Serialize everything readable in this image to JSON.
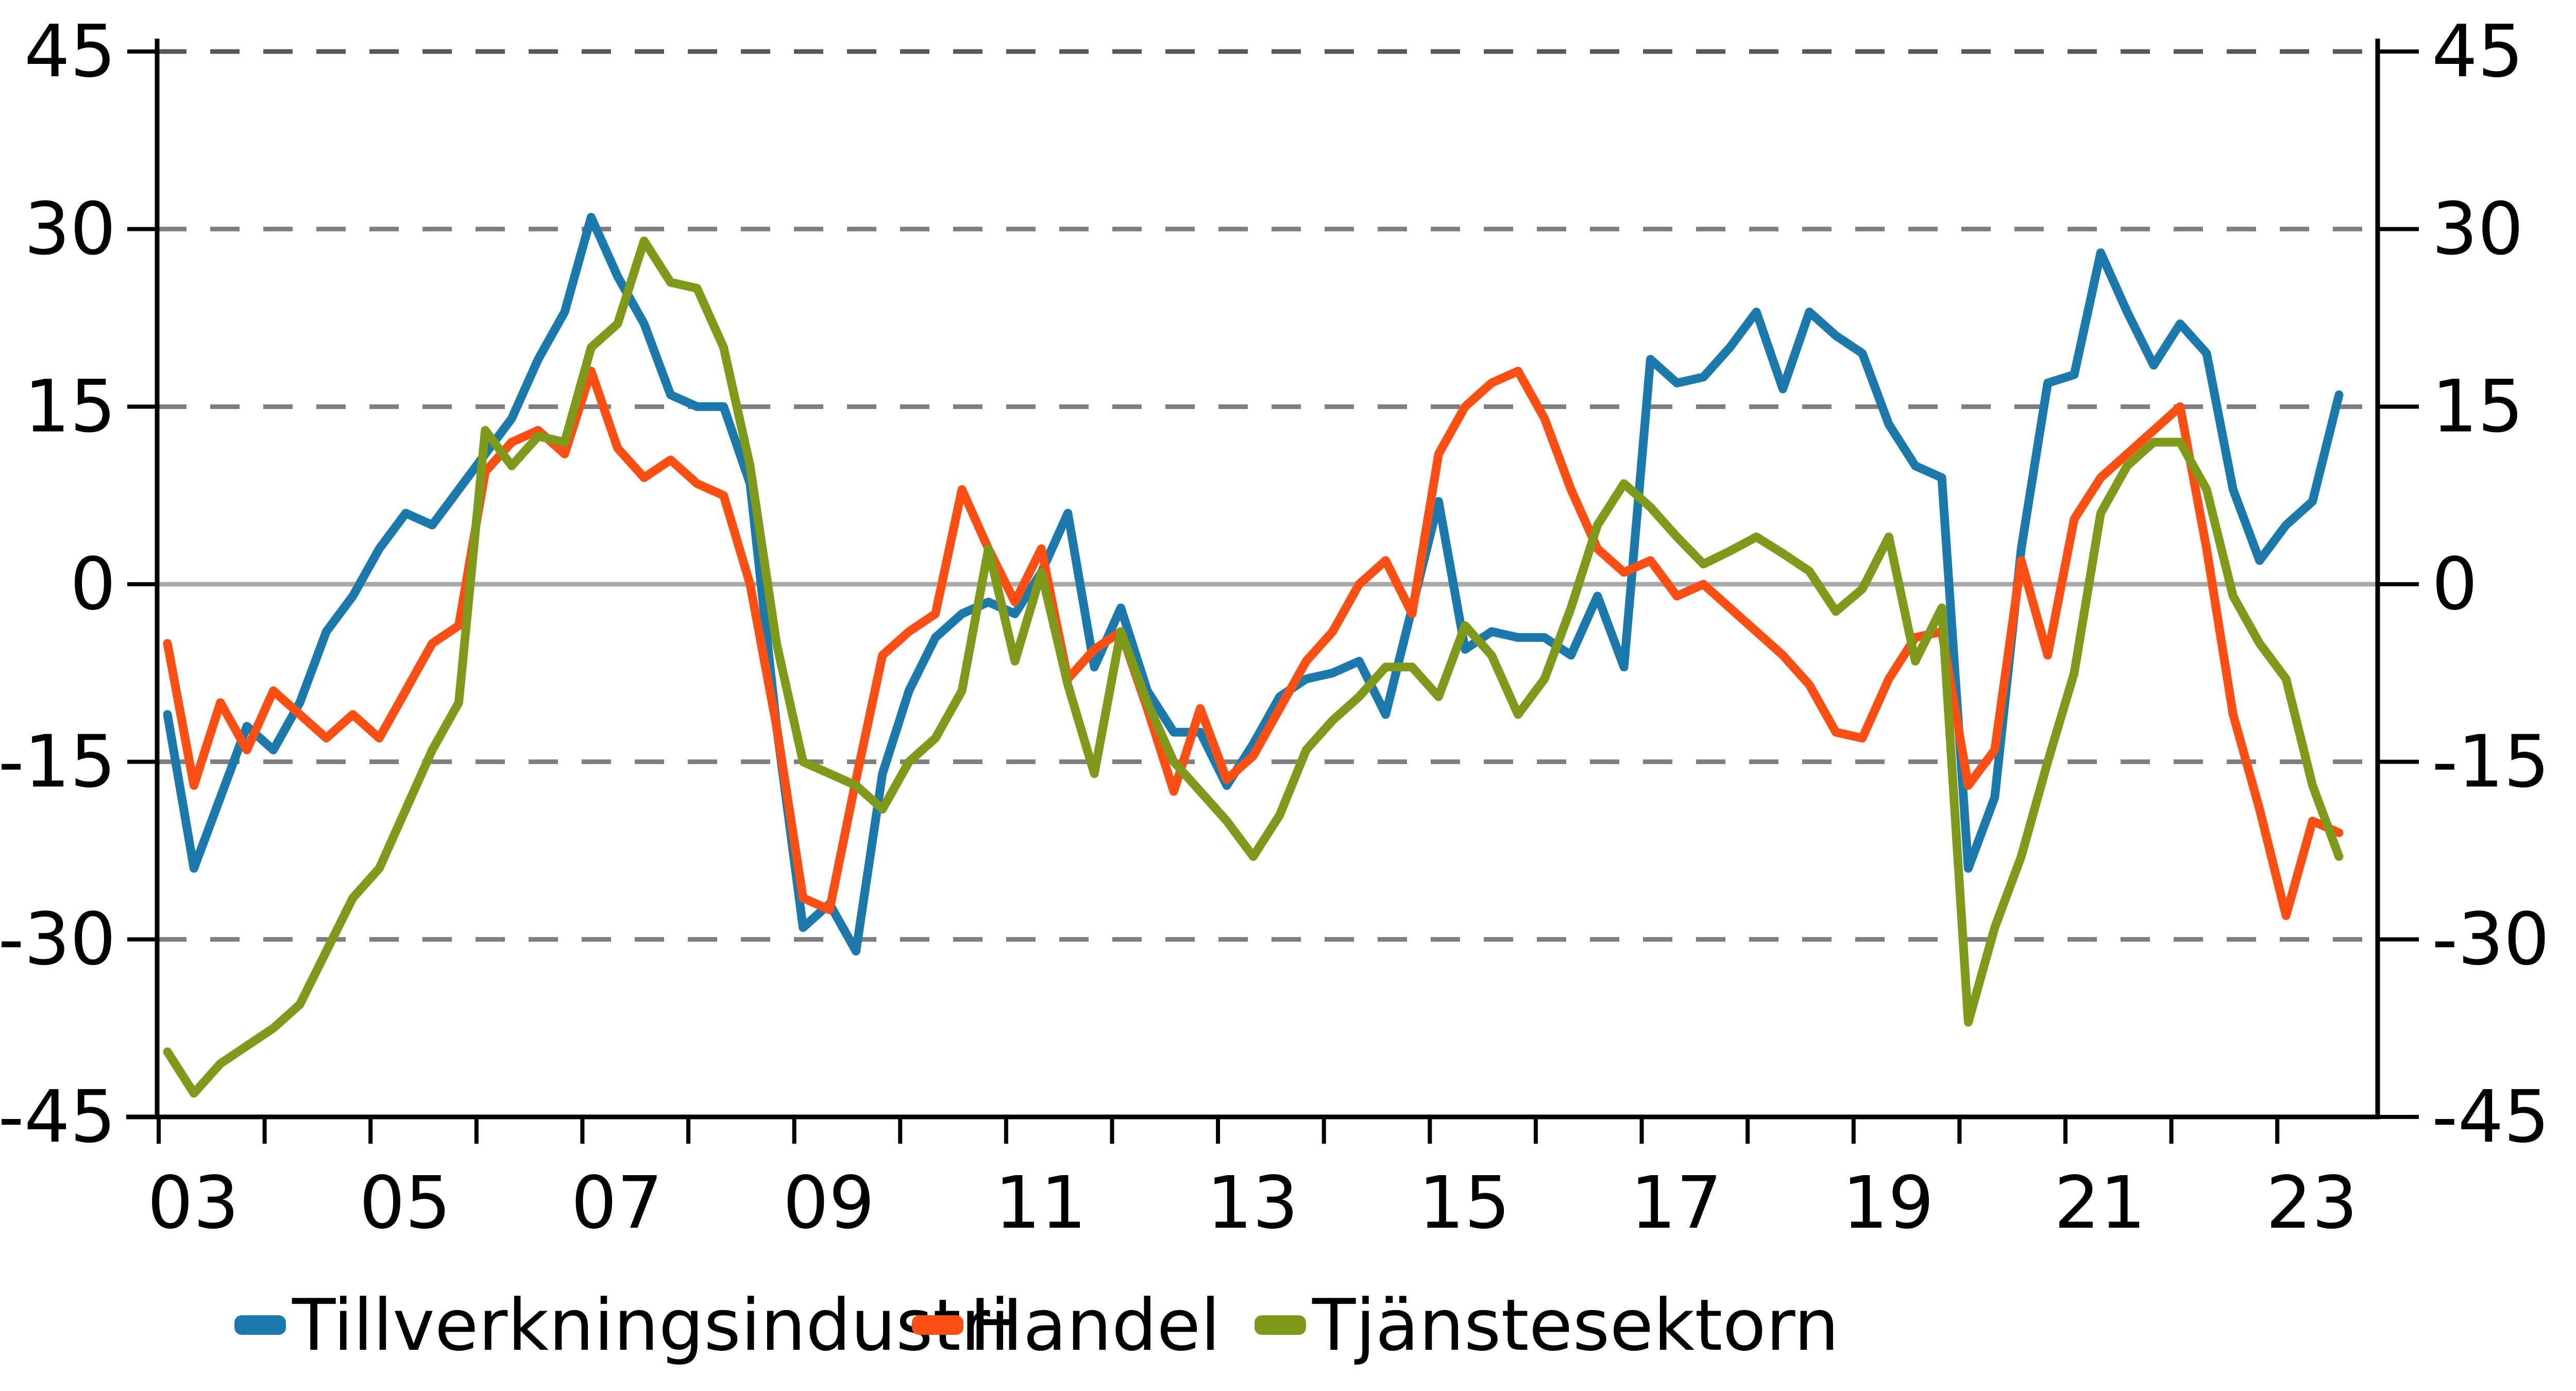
{
  "chart_data": {
    "type": "line",
    "title": "",
    "xlabel": "",
    "ylabel": "",
    "background": "#ffffff",
    "ylim": [
      -45,
      45
    ],
    "y_ticks": [
      45,
      30,
      15,
      0,
      -15,
      -30,
      -45
    ],
    "x_tick_years": [
      "03",
      "04",
      "05",
      "06",
      "07",
      "08",
      "09",
      "10",
      "11",
      "12",
      "13",
      "14",
      "15",
      "16",
      "17",
      "18",
      "19",
      "20",
      "21",
      "22",
      "23"
    ],
    "x_labels": [
      "03",
      "05",
      "07",
      "09",
      "11",
      "13",
      "15",
      "17",
      "19",
      "21",
      "23"
    ],
    "start_quarter": "2003Q1",
    "end_quarter": "2023Q3",
    "frequency": "quarterly",
    "grid": {
      "dashed_color": "#7f7f7f",
      "top_dashed_color": "#595959",
      "zero_line_color": "#a8a8a8",
      "axis_color": "#000000"
    },
    "legend_position": "bottom",
    "series": [
      {
        "name": "Tillverkningsindustri",
        "color": "#1b7aab",
        "values": [
          -11,
          -24,
          -18,
          -12,
          -14,
          -10,
          -4,
          -1,
          3,
          6,
          5,
          8,
          11,
          14,
          19,
          23,
          31,
          26,
          22,
          16,
          15,
          15,
          8.5,
          -12,
          -29,
          -27,
          -31,
          -16,
          -9,
          -4.5,
          -2.5,
          -1.5,
          -2.5,
          1,
          6,
          -7,
          -2,
          -9,
          -12.5,
          -12.5,
          -17,
          -13.5,
          -9.5,
          -8,
          -7.5,
          -6.5,
          -11,
          -2,
          7,
          -5.5,
          -4,
          -4.5,
          -4.5,
          -6,
          -1,
          -7,
          19,
          17,
          17.5,
          20,
          23,
          16.5,
          23,
          21,
          19.5,
          13.5,
          10,
          9,
          -24,
          -18,
          3,
          17,
          17.7,
          28,
          23,
          18.5,
          22,
          19.5,
          8,
          2,
          5,
          7,
          16
        ]
      },
      {
        "name": "Handel",
        "color": "#fb4f14",
        "values": [
          -5,
          -17,
          -10,
          -14,
          -9,
          -11,
          -13,
          -11,
          -13,
          -9,
          -5,
          -3.5,
          9.5,
          12,
          13,
          11,
          18,
          11.5,
          9,
          10.5,
          8.5,
          7.5,
          0,
          -12,
          -26.5,
          -27.5,
          -16.5,
          -6,
          -4,
          -2.5,
          8,
          3,
          -1.5,
          3,
          -8,
          -5.5,
          -4,
          -10.5,
          -17.5,
          -10.5,
          -16.5,
          -14.5,
          -10.5,
          -6.5,
          -4,
          0,
          2,
          -2.5,
          11,
          15,
          17,
          18,
          14,
          8,
          3,
          1,
          2,
          -1,
          0,
          -2,
          -4,
          -6,
          -8.5,
          -12.5,
          -13,
          -8,
          -4.5,
          -4,
          -17,
          -14,
          2,
          -6,
          5.5,
          9,
          11,
          13,
          15,
          3,
          -11,
          -19,
          -28,
          -20,
          -21
        ]
      },
      {
        "name": "Tjänstesektorn",
        "color": "#7f9a1a",
        "values": [
          -39.5,
          -43,
          -40.5,
          -39,
          -37.5,
          -35.5,
          -31,
          -26.5,
          -24,
          -19,
          -14,
          -10,
          13,
          10,
          12.5,
          12,
          20,
          22,
          29,
          25.5,
          25,
          20,
          10,
          -5,
          -15,
          -16,
          -17,
          -19,
          -15,
          -13,
          -9,
          3,
          -6.5,
          1,
          -8.5,
          -16,
          -4,
          -10,
          -15,
          -17.5,
          -20,
          -23,
          -19.5,
          -14,
          -11.5,
          -9.5,
          -7,
          -7,
          -9.5,
          -3.5,
          -6,
          -11,
          -8,
          -2,
          5,
          8.5,
          6.5,
          4,
          1.7,
          2.8,
          4,
          2.6,
          1.1,
          -2.3,
          -0.4,
          4,
          -6.5,
          -2,
          -37,
          -29,
          -23,
          -15,
          -7.5,
          6,
          10,
          12,
          12,
          8,
          -1,
          -5,
          -8,
          -17,
          -23
        ]
      }
    ],
    "legend": [
      {
        "label": "Tillverkningsindustri",
        "color": "#1b7aab"
      },
      {
        "label": "Handel",
        "color": "#fb4f14"
      },
      {
        "label": "Tjänstesektorn",
        "color": "#7f9a1a"
      }
    ]
  }
}
